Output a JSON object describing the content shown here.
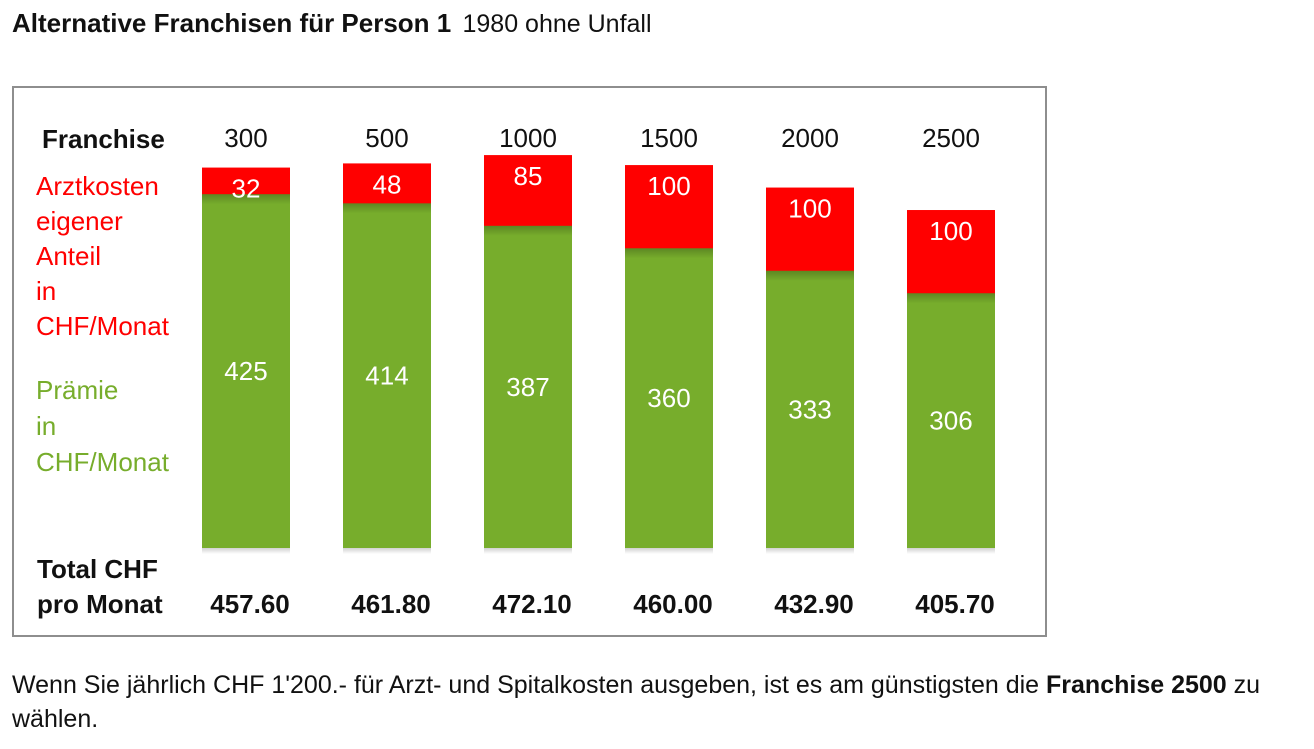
{
  "title": {
    "bold": "Alternative Franchisen für Person 1",
    "sub": "1980 ohne Unfall"
  },
  "chart_data": {
    "type": "bar",
    "stacked": true,
    "row_labels": {
      "franchise": "Franchise",
      "arztkosten": [
        "Arztkosten",
        "eigener",
        "Anteil",
        "in",
        "CHF/Monat"
      ],
      "praemie": [
        "Prämie",
        "in",
        "CHF/Monat"
      ],
      "total": [
        "Total CHF",
        "pro Monat"
      ]
    },
    "categories": [
      "300",
      "500",
      "1000",
      "1500",
      "2000",
      "2500"
    ],
    "series": [
      {
        "name": "Prämie in CHF/Monat",
        "color": "#77ad2c",
        "values": [
          425,
          414,
          387,
          360,
          333,
          306
        ]
      },
      {
        "name": "Arztkosten eigener Anteil in CHF/Monat",
        "color": "#ff0000",
        "values": [
          32,
          48,
          85,
          100,
          100,
          100
        ]
      }
    ],
    "totals": [
      "457.60",
      "461.80",
      "472.10",
      "460.00",
      "432.90",
      "405.70"
    ],
    "ylim": [
      0,
      472.1
    ]
  },
  "note": {
    "text_before": "Wenn Sie jährlich CHF 1'200.- für Arzt- und Spitalkosten ausgeben, ist es am günstigsten die ",
    "bold": "Franchise 2500",
    "text_after": " zu wählen."
  }
}
